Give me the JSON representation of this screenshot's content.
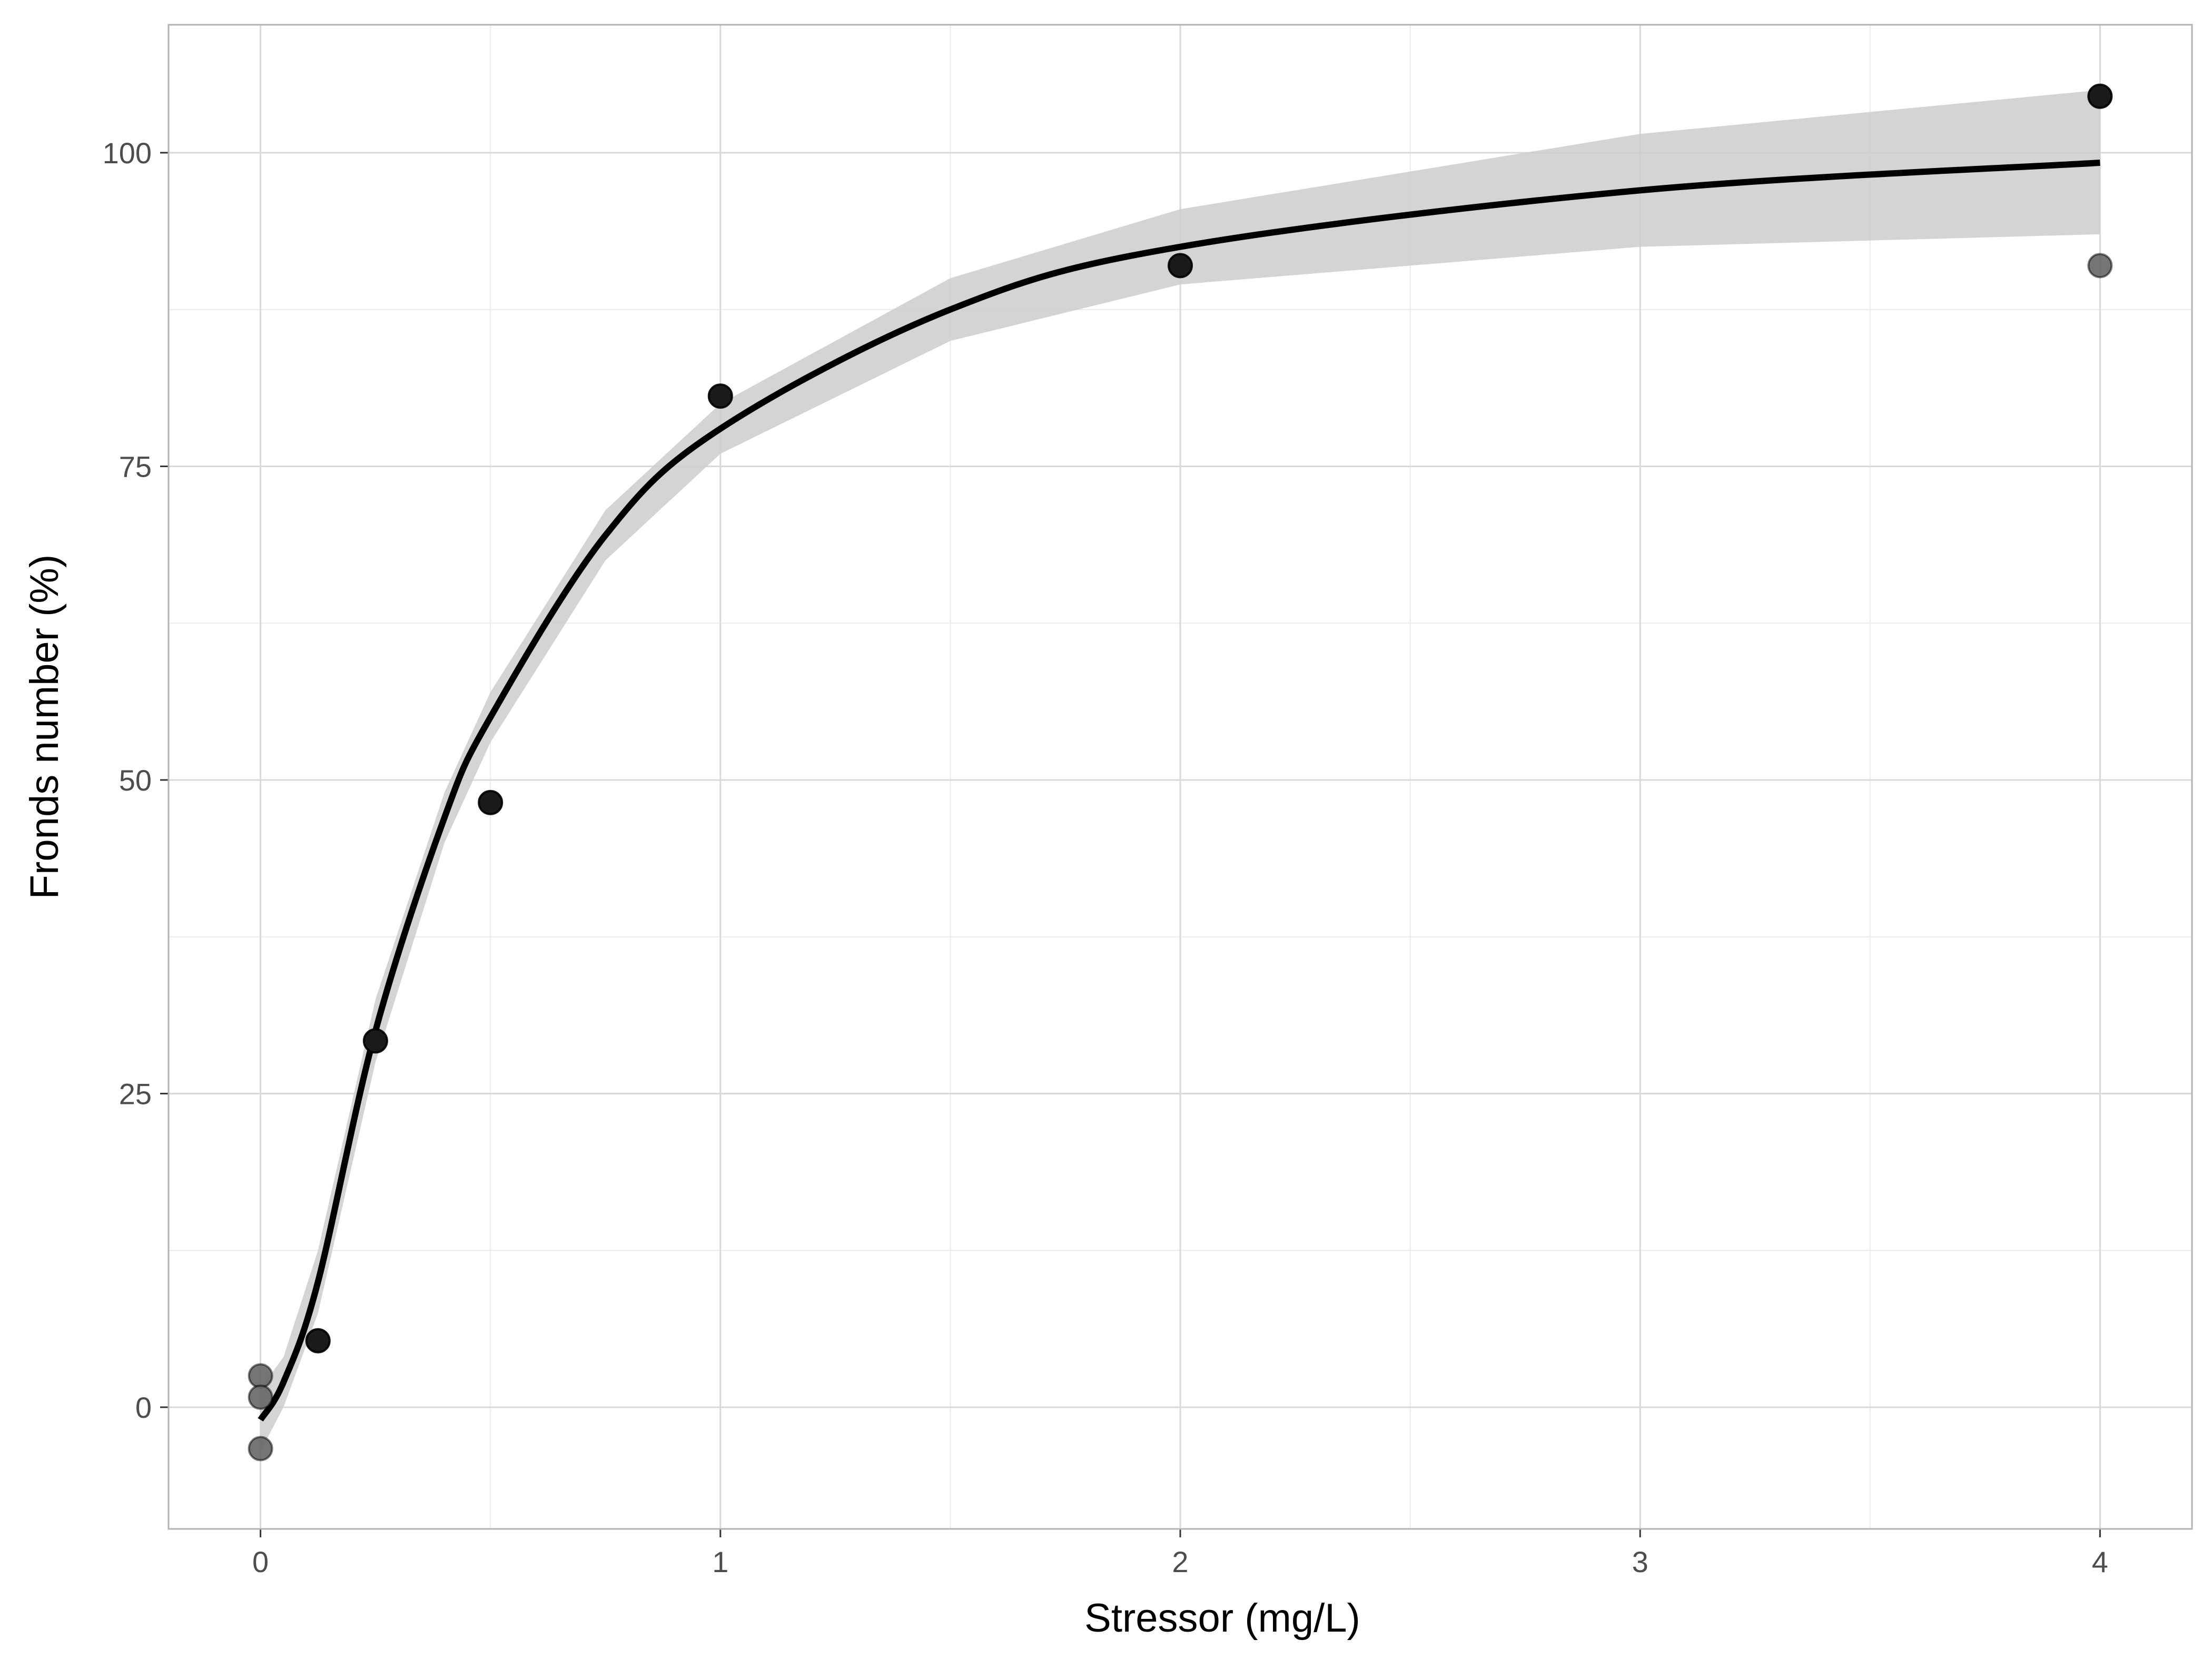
{
  "chart_data": {
    "type": "scatter",
    "title": "",
    "xlabel": "Stressor (mg/L)",
    "ylabel": "Fronds number (%)",
    "xlim": [
      -0.2,
      4.2
    ],
    "ylim": [
      -9.7,
      110.2
    ],
    "x_ticks": [
      0,
      1,
      2,
      3,
      4
    ],
    "y_ticks": [
      0,
      25,
      50,
      75,
      100
    ],
    "x_tick_labels": [
      "0",
      "1",
      "2",
      "3",
      "4"
    ],
    "y_tick_labels": [
      "0",
      "25",
      "50",
      "75",
      "100"
    ],
    "grid": true,
    "legend": "none",
    "series": [
      {
        "type": "scatter",
        "points": [
          {
            "x": 0,
            "y": 2.5,
            "shade": "faded"
          },
          {
            "x": 0,
            "y": 0.8,
            "shade": "faded"
          },
          {
            "x": 0,
            "y": -3.3,
            "shade": "faded"
          },
          {
            "x": 0.125,
            "y": 5.3,
            "shade": "solid"
          },
          {
            "x": 0.25,
            "y": 29.2,
            "shade": "solid"
          },
          {
            "x": 0.5,
            "y": 48.2,
            "shade": "solid"
          },
          {
            "x": 1,
            "y": 80.6,
            "shade": "solid"
          },
          {
            "x": 2,
            "y": 91.0,
            "shade": "solid"
          },
          {
            "x": 4,
            "y": 104.5,
            "shade": "solid"
          },
          {
            "x": 4,
            "y": 91.0,
            "shade": "faded"
          }
        ]
      },
      {
        "type": "line",
        "x": [
          0.0,
          0.05,
          0.125,
          0.25,
          0.4,
          0.5,
          0.75,
          1.0,
          1.5,
          2.0,
          3.0,
          4.0
        ],
        "y": [
          -1.0,
          2.0,
          10.0,
          30.0,
          47.0,
          55.0,
          69.5,
          78.0,
          87.5,
          92.5,
          97.0,
          99.2
        ]
      },
      {
        "type": "band",
        "x": [
          0.0,
          0.05,
          0.125,
          0.25,
          0.4,
          0.5,
          0.75,
          1.0,
          1.5,
          2.0,
          3.0,
          4.0
        ],
        "lower": [
          -3.5,
          0.0,
          7.5,
          27.5,
          45.0,
          53.0,
          67.5,
          76.0,
          85.0,
          89.5,
          92.5,
          93.5
        ],
        "upper": [
          1.5,
          4.0,
          12.5,
          32.5,
          49.0,
          57.0,
          71.5,
          80.0,
          90.0,
          95.5,
          101.5,
          105.0
        ]
      }
    ],
    "colors": {
      "background": "#ffffff",
      "panel_border": "#b3b3b3",
      "grid_major": "#d9d9d9",
      "grid_minor": "#ebebeb",
      "band": "#cccccc",
      "line": "#000000",
      "point_solid": "#1a1a1a",
      "point_faded": "#666666"
    }
  }
}
